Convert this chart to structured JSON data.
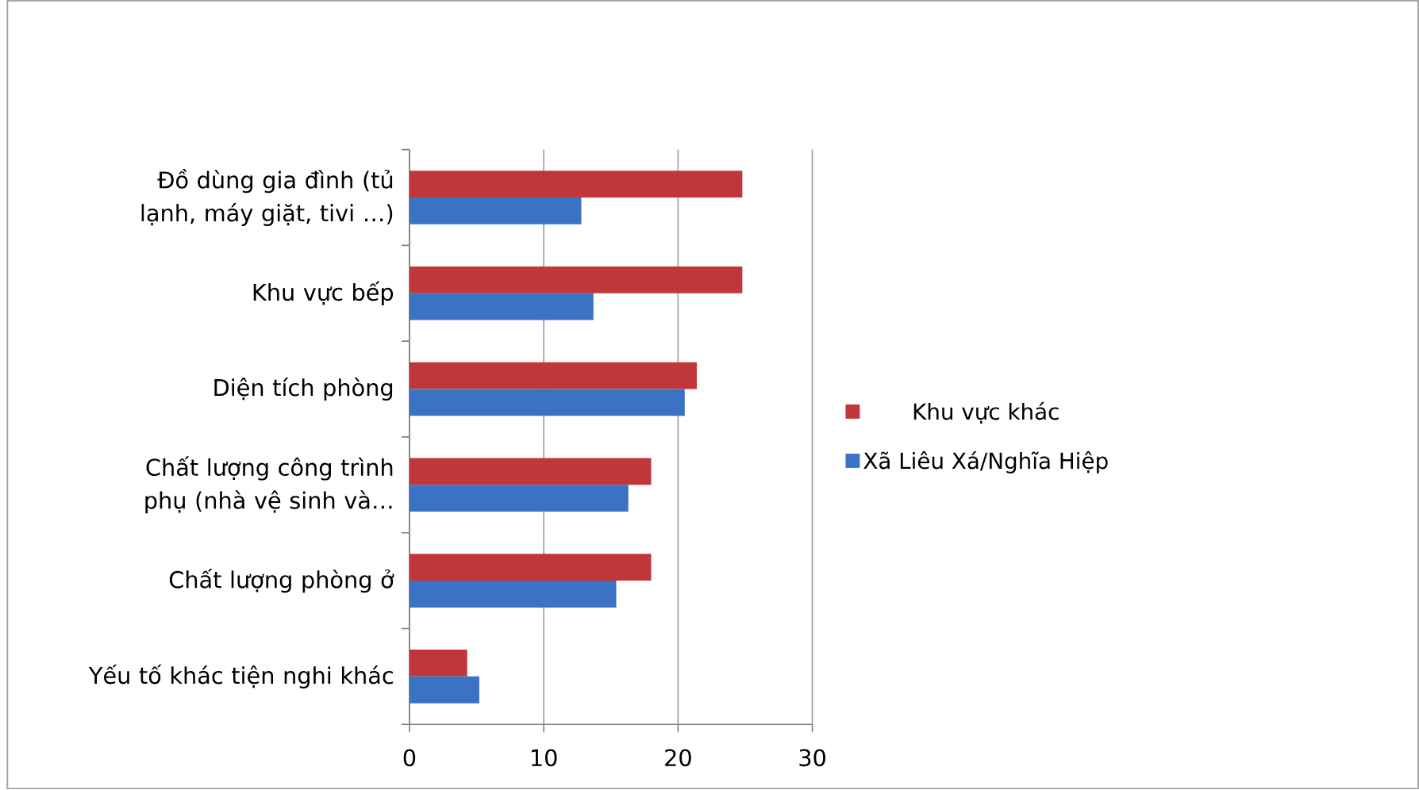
{
  "chart_data": {
    "type": "bar",
    "orientation": "horizontal",
    "categories": [
      "Đồ dùng gia đình (tủ lạnh, máy giặt, tivi …)",
      "Khu vực bếp",
      "Diện tích phòng",
      "Chất lượng công trình phụ (nhà vệ sinh và…",
      "Chất lượng phòng ở",
      "Yếu tố khác tiện nghi khác"
    ],
    "series": [
      {
        "name": "Khu vực khác",
        "color": "#c0373a",
        "values": [
          24.8,
          24.8,
          21.4,
          18.0,
          18.0,
          4.3
        ]
      },
      {
        "name": "Xã Liêu Xá/Nghĩa Hiệp",
        "color": "#3a73c3",
        "values": [
          12.8,
          13.7,
          20.5,
          16.3,
          15.4,
          5.2
        ]
      }
    ],
    "xlim": [
      0,
      30
    ],
    "xticks": [
      0,
      10,
      20,
      30
    ],
    "grid": "x",
    "legend": "right"
  }
}
